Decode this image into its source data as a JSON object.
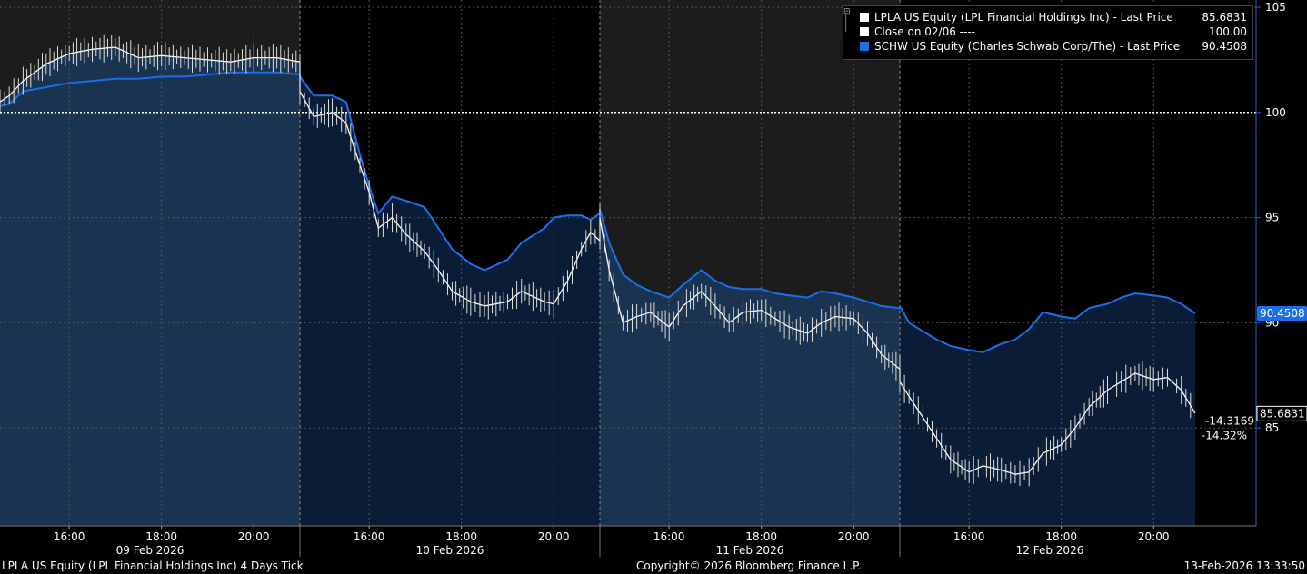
{
  "chart_data": {
    "type": "line",
    "title": "",
    "xlabel": "",
    "ylabel": "",
    "ylim": [
      80,
      105
    ],
    "y_ticks": [
      85,
      90,
      95,
      100,
      105
    ],
    "grid": true,
    "legend_placement": "top-right",
    "days": [
      "09 Feb 2026",
      "10 Feb 2026",
      "11 Feb 2026",
      "12 Feb 2026"
    ],
    "time_ticks": [
      "16:00",
      "18:00",
      "20:00",
      "16:00",
      "18:00",
      "20:00",
      "16:00",
      "18:00",
      "20:00",
      "16:00",
      "18:00",
      "20:00"
    ],
    "x_hours": [
      14.5,
      15.5,
      16.0,
      17.0,
      18.0,
      19.0,
      20.0,
      20.5,
      21.0
    ],
    "series": [
      {
        "name": "LPLA US Equity (LPL Financial Holdings Inc) - Last Price",
        "last_value": "85.6831",
        "color": "#ffffff",
        "points": [
          [
            0,
            14.5,
            100.5
          ],
          [
            0,
            14.7,
            100.8
          ],
          [
            0,
            15.0,
            101.5
          ],
          [
            0,
            15.5,
            102.3
          ],
          [
            0,
            16.0,
            102.8
          ],
          [
            0,
            16.5,
            103.0
          ],
          [
            0,
            17.0,
            103.1
          ],
          [
            0,
            17.5,
            102.6
          ],
          [
            0,
            18.0,
            102.7
          ],
          [
            0,
            18.5,
            102.6
          ],
          [
            0,
            19.0,
            102.5
          ],
          [
            0,
            19.5,
            102.4
          ],
          [
            0,
            20.0,
            102.6
          ],
          [
            0,
            20.5,
            102.6
          ],
          [
            0,
            21.0,
            102.4
          ],
          [
            1,
            14.5,
            101.0
          ],
          [
            1,
            14.8,
            99.8
          ],
          [
            1,
            15.2,
            100.0
          ],
          [
            1,
            15.5,
            99.5
          ],
          [
            1,
            15.8,
            97.5
          ],
          [
            1,
            16.0,
            96.2
          ],
          [
            1,
            16.2,
            94.5
          ],
          [
            1,
            16.5,
            95.0
          ],
          [
            1,
            16.8,
            94.2
          ],
          [
            1,
            17.2,
            93.4
          ],
          [
            1,
            17.5,
            92.5
          ],
          [
            1,
            17.8,
            91.5
          ],
          [
            1,
            18.2,
            91.0
          ],
          [
            1,
            18.5,
            90.8
          ],
          [
            1,
            19.0,
            91.0
          ],
          [
            1,
            19.3,
            91.5
          ],
          [
            1,
            19.8,
            91.0
          ],
          [
            1,
            20.0,
            90.9
          ],
          [
            1,
            20.3,
            92.0
          ],
          [
            1,
            20.6,
            93.5
          ],
          [
            1,
            20.8,
            94.3
          ],
          [
            1,
            21.0,
            93.9
          ],
          [
            2,
            14.5,
            95.0
          ],
          [
            2,
            14.7,
            92.5
          ],
          [
            2,
            15.0,
            90.0
          ],
          [
            2,
            15.3,
            90.3
          ],
          [
            2,
            15.6,
            90.5
          ],
          [
            2,
            16.0,
            89.8
          ],
          [
            2,
            16.3,
            90.8
          ],
          [
            2,
            16.7,
            91.5
          ],
          [
            2,
            17.0,
            90.8
          ],
          [
            2,
            17.3,
            90.0
          ],
          [
            2,
            17.6,
            90.5
          ],
          [
            2,
            18.0,
            90.6
          ],
          [
            2,
            18.3,
            90.2
          ],
          [
            2,
            18.6,
            89.8
          ],
          [
            2,
            19.0,
            89.5
          ],
          [
            2,
            19.3,
            90.0
          ],
          [
            2,
            19.6,
            90.3
          ],
          [
            2,
            20.0,
            90.2
          ],
          [
            2,
            20.3,
            89.5
          ],
          [
            2,
            20.6,
            88.5
          ],
          [
            2,
            21.0,
            87.8
          ],
          [
            3,
            14.5,
            87.2
          ],
          [
            3,
            14.7,
            86.5
          ],
          [
            3,
            15.0,
            85.5
          ],
          [
            3,
            15.3,
            84.5
          ],
          [
            3,
            15.6,
            83.5
          ],
          [
            3,
            16.0,
            82.9
          ],
          [
            3,
            16.3,
            83.2
          ],
          [
            3,
            16.7,
            83.0
          ],
          [
            3,
            17.0,
            82.8
          ],
          [
            3,
            17.3,
            82.9
          ],
          [
            3,
            17.6,
            83.8
          ],
          [
            3,
            18.0,
            84.2
          ],
          [
            3,
            18.3,
            85.0
          ],
          [
            3,
            18.6,
            86.0
          ],
          [
            3,
            19.0,
            86.8
          ],
          [
            3,
            19.3,
            87.2
          ],
          [
            3,
            19.6,
            87.6
          ],
          [
            3,
            20.0,
            87.3
          ],
          [
            3,
            20.3,
            87.4
          ],
          [
            3,
            20.6,
            86.8
          ],
          [
            3,
            20.9,
            85.7
          ]
        ]
      },
      {
        "name": "Close on 02/06 ----",
        "last_value": "100.00",
        "color": "#ffffff",
        "value": 100
      },
      {
        "name": "SCHW US Equity (Charles Schwab Corp/The) - Last Price",
        "last_value": "90.4508",
        "color": "#1a6fe8",
        "points": [
          [
            0,
            14.5,
            100.3
          ],
          [
            0,
            14.7,
            100.4
          ],
          [
            0,
            15.0,
            101.0
          ],
          [
            0,
            15.5,
            101.2
          ],
          [
            0,
            16.0,
            101.4
          ],
          [
            0,
            16.5,
            101.5
          ],
          [
            0,
            17.0,
            101.6
          ],
          [
            0,
            17.5,
            101.6
          ],
          [
            0,
            18.0,
            101.7
          ],
          [
            0,
            18.5,
            101.7
          ],
          [
            0,
            19.0,
            101.8
          ],
          [
            0,
            19.5,
            101.9
          ],
          [
            0,
            20.0,
            101.9
          ],
          [
            0,
            20.5,
            101.9
          ],
          [
            0,
            21.0,
            101.8
          ],
          [
            1,
            14.5,
            101.7
          ],
          [
            1,
            14.8,
            100.8
          ],
          [
            1,
            15.2,
            100.8
          ],
          [
            1,
            15.5,
            100.5
          ],
          [
            1,
            15.8,
            98.0
          ],
          [
            1,
            16.0,
            96.5
          ],
          [
            1,
            16.2,
            95.2
          ],
          [
            1,
            16.5,
            96.0
          ],
          [
            1,
            16.8,
            95.8
          ],
          [
            1,
            17.2,
            95.5
          ],
          [
            1,
            17.5,
            94.5
          ],
          [
            1,
            17.8,
            93.5
          ],
          [
            1,
            18.2,
            92.8
          ],
          [
            1,
            18.5,
            92.5
          ],
          [
            1,
            19.0,
            93.0
          ],
          [
            1,
            19.3,
            93.8
          ],
          [
            1,
            19.8,
            94.5
          ],
          [
            1,
            20.0,
            95.0
          ],
          [
            1,
            20.3,
            95.1
          ],
          [
            1,
            20.6,
            95.1
          ],
          [
            1,
            20.8,
            94.9
          ],
          [
            1,
            21.0,
            95.2
          ],
          [
            2,
            14.5,
            95.4
          ],
          [
            2,
            14.7,
            93.8
          ],
          [
            2,
            15.0,
            92.3
          ],
          [
            2,
            15.3,
            91.8
          ],
          [
            2,
            15.6,
            91.5
          ],
          [
            2,
            16.0,
            91.2
          ],
          [
            2,
            16.3,
            91.8
          ],
          [
            2,
            16.7,
            92.5
          ],
          [
            2,
            17.0,
            92.0
          ],
          [
            2,
            17.3,
            91.7
          ],
          [
            2,
            17.6,
            91.6
          ],
          [
            2,
            18.0,
            91.6
          ],
          [
            2,
            18.3,
            91.4
          ],
          [
            2,
            18.6,
            91.3
          ],
          [
            2,
            19.0,
            91.2
          ],
          [
            2,
            19.3,
            91.5
          ],
          [
            2,
            19.6,
            91.4
          ],
          [
            2,
            20.0,
            91.2
          ],
          [
            2,
            20.3,
            91.0
          ],
          [
            2,
            20.6,
            90.8
          ],
          [
            2,
            21.0,
            90.7
          ],
          [
            3,
            14.5,
            90.8
          ],
          [
            3,
            14.7,
            90.0
          ],
          [
            3,
            15.0,
            89.6
          ],
          [
            3,
            15.3,
            89.2
          ],
          [
            3,
            15.6,
            88.9
          ],
          [
            3,
            16.0,
            88.7
          ],
          [
            3,
            16.3,
            88.6
          ],
          [
            3,
            16.7,
            89.0
          ],
          [
            3,
            17.0,
            89.2
          ],
          [
            3,
            17.3,
            89.7
          ],
          [
            3,
            17.6,
            90.5
          ],
          [
            3,
            18.0,
            90.3
          ],
          [
            3,
            18.3,
            90.2
          ],
          [
            3,
            18.6,
            90.7
          ],
          [
            3,
            19.0,
            90.9
          ],
          [
            3,
            19.3,
            91.2
          ],
          [
            3,
            19.6,
            91.4
          ],
          [
            3,
            20.0,
            91.3
          ],
          [
            3,
            20.3,
            91.2
          ],
          [
            3,
            20.6,
            90.9
          ],
          [
            3,
            20.9,
            90.45
          ]
        ]
      }
    ],
    "annotations": {
      "schw_last": "90.4508",
      "lpla_last": "85.6831",
      "change_abs": "-14.3169",
      "change_pct": "-14.32%"
    }
  },
  "legend": {
    "rows": [
      {
        "label": "LPLA US Equity (LPL Financial Holdings Inc) - Last Price",
        "value": "85.6831",
        "color": "#ffffff"
      },
      {
        "label": "Close on 02/06 ----",
        "value": "100.00",
        "color": "#ffffff"
      },
      {
        "label": "SCHW US Equity (Charles Schwab Corp/The) - Last Price",
        "value": "90.4508",
        "color": "#1a6fe8"
      }
    ]
  },
  "footer": {
    "left": "LPLA US Equity (LPL Financial Holdings Inc) 4 Days Tick",
    "center": "Copyright© 2026 Bloomberg Finance L.P.",
    "right": "13-Feb-2026 13:33:50"
  },
  "colors": {
    "background": "#000000",
    "shade_dark": "#1c1c1c",
    "area_fill": "#0f2a48",
    "schw_blue": "#1a6fe8",
    "axis_blue": "#2a5fd0"
  }
}
